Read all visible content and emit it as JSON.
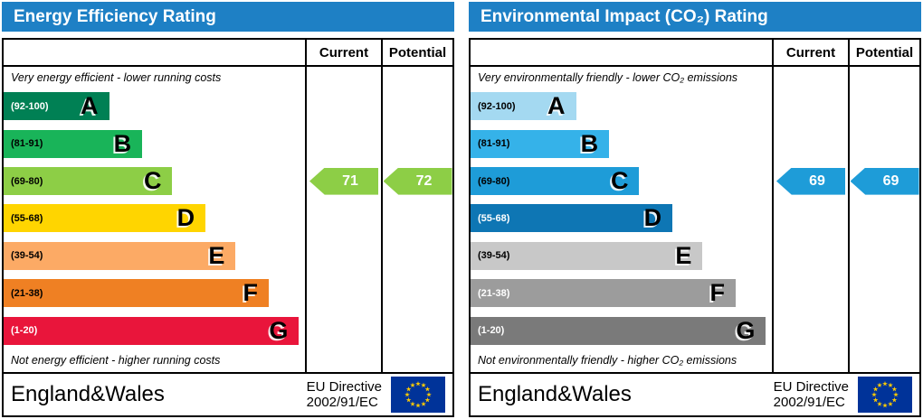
{
  "theme": {
    "header_bg": "#1e80c5",
    "border_color": "#000000",
    "eu_flag_blue": "#003399",
    "eu_flag_star": "#ffcc00"
  },
  "panels": [
    {
      "title": "Energy Efficiency Rating",
      "columns": {
        "current": "Current",
        "potential": "Potential"
      },
      "top_caption": "Very energy efficient - lower running costs",
      "bottom_caption": "Not energy efficient - higher running costs",
      "bands": [
        {
          "label": "A",
          "range": "(92-100)",
          "color": "#008054",
          "range_color": "#ffffff",
          "width_pct": 35
        },
        {
          "label": "B",
          "range": "(81-91)",
          "color": "#19b459",
          "range_color": "#000000",
          "width_pct": 46
        },
        {
          "label": "C",
          "range": "(69-80)",
          "color": "#8dce46",
          "range_color": "#000000",
          "width_pct": 56
        },
        {
          "label": "D",
          "range": "(55-68)",
          "color": "#ffd500",
          "range_color": "#000000",
          "width_pct": 67
        },
        {
          "label": "E",
          "range": "(39-54)",
          "color": "#fcaa65",
          "range_color": "#000000",
          "width_pct": 77
        },
        {
          "label": "F",
          "range": "(21-38)",
          "color": "#ef8023",
          "range_color": "#000000",
          "width_pct": 88
        },
        {
          "label": "G",
          "range": "(1-20)",
          "color": "#e9153b",
          "range_color": "#ffffff",
          "width_pct": 98
        }
      ],
      "current": {
        "value": "71",
        "band": "C",
        "band_index": 2,
        "color": "#8dce46"
      },
      "potential": {
        "value": "72",
        "band": "C",
        "band_index": 2,
        "color": "#8dce46"
      },
      "footer": {
        "region": "England&Wales",
        "directive_line1": "EU Directive",
        "directive_line2": "2002/91/EC"
      }
    },
    {
      "title": "Environmental Impact (CO₂) Rating",
      "columns": {
        "current": "Current",
        "potential": "Potential"
      },
      "top_caption": "Very environmentally friendly - lower CO₂ emissions",
      "bottom_caption": "Not environmentally friendly - higher CO₂ emissions",
      "bands": [
        {
          "label": "A",
          "range": "(92-100)",
          "color": "#a4d9f1",
          "range_color": "#000000",
          "width_pct": 35
        },
        {
          "label": "B",
          "range": "(81-91)",
          "color": "#35b2e9",
          "range_color": "#000000",
          "width_pct": 46
        },
        {
          "label": "C",
          "range": "(69-80)",
          "color": "#1e9cd8",
          "range_color": "#000000",
          "width_pct": 56
        },
        {
          "label": "D",
          "range": "(55-68)",
          "color": "#0e76b4",
          "range_color": "#ffffff",
          "width_pct": 67
        },
        {
          "label": "E",
          "range": "(39-54)",
          "color": "#c8c8c8",
          "range_color": "#000000",
          "width_pct": 77
        },
        {
          "label": "F",
          "range": "(21-38)",
          "color": "#9c9c9c",
          "range_color": "#ffffff",
          "width_pct": 88
        },
        {
          "label": "G",
          "range": "(1-20)",
          "color": "#7a7a7a",
          "range_color": "#ffffff",
          "width_pct": 98
        }
      ],
      "current": {
        "value": "69",
        "band": "C",
        "band_index": 2,
        "color": "#1e9cd8"
      },
      "potential": {
        "value": "69",
        "band": "C",
        "band_index": 2,
        "color": "#1e9cd8"
      },
      "footer": {
        "region": "England&Wales",
        "directive_line1": "EU Directive",
        "directive_line2": "2002/91/EC"
      }
    }
  ],
  "chart_data": [
    {
      "type": "bar",
      "title": "Energy Efficiency Rating",
      "categories": [
        "A",
        "B",
        "C",
        "D",
        "E",
        "F",
        "G"
      ],
      "band_ranges": [
        "92-100",
        "81-91",
        "69-80",
        "55-68",
        "39-54",
        "21-38",
        "1-20"
      ],
      "series": [
        {
          "name": "Current",
          "values": [
            71
          ]
        },
        {
          "name": "Potential",
          "values": [
            72
          ]
        }
      ],
      "current": 71,
      "potential": 72,
      "current_band": "C",
      "potential_band": "C",
      "scale": [
        1,
        100
      ],
      "top_note": "Very energy efficient - lower running costs",
      "bottom_note": "Not energy efficient - higher running costs"
    },
    {
      "type": "bar",
      "title": "Environmental Impact (CO₂) Rating",
      "categories": [
        "A",
        "B",
        "C",
        "D",
        "E",
        "F",
        "G"
      ],
      "band_ranges": [
        "92-100",
        "81-91",
        "69-80",
        "55-68",
        "39-54",
        "21-38",
        "1-20"
      ],
      "series": [
        {
          "name": "Current",
          "values": [
            69
          ]
        },
        {
          "name": "Potential",
          "values": [
            69
          ]
        }
      ],
      "current": 69,
      "potential": 69,
      "current_band": "C",
      "potential_band": "C",
      "scale": [
        1,
        100
      ],
      "top_note": "Very environmentally friendly - lower CO₂ emissions",
      "bottom_note": "Not environmentally friendly - higher CO₂ emissions"
    }
  ]
}
